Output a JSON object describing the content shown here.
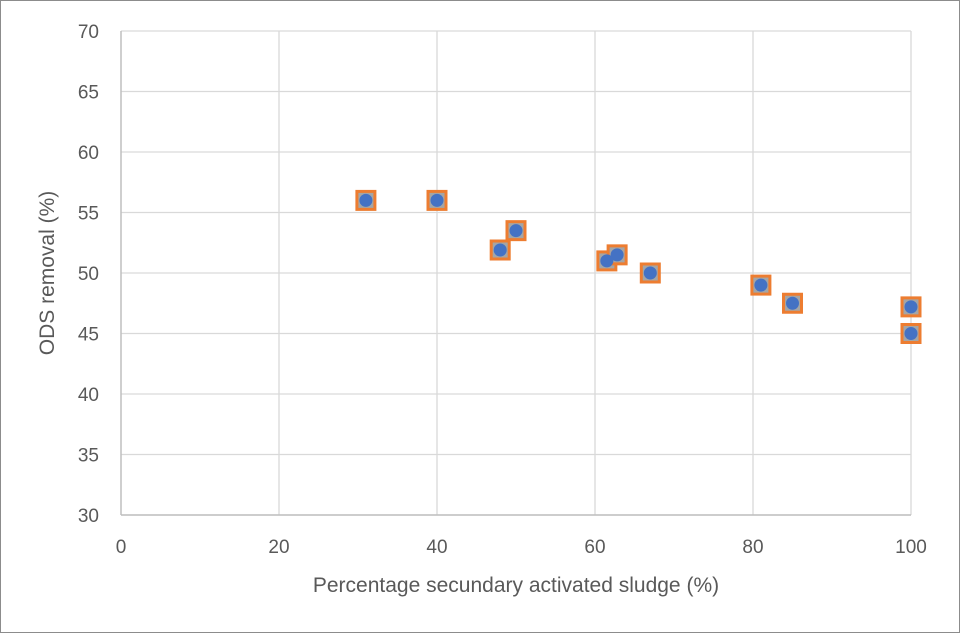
{
  "chart_data": {
    "type": "scatter",
    "xlabel": "Percentage secundary activated sludge  (%)",
    "ylabel": "ODS removal  (%)",
    "xlim": [
      0,
      100
    ],
    "ylim": [
      30,
      70
    ],
    "x_ticks": [
      "0",
      "20",
      "40",
      "60",
      "80",
      "100"
    ],
    "y_ticks": [
      "30",
      "35",
      "40",
      "45",
      "50",
      "55",
      "60",
      "65",
      "70"
    ],
    "grid": true,
    "legend": "none",
    "colors": {
      "circle_marker": "#4472C4",
      "square_marker_fill": "#A5A5A5",
      "square_marker_border": "#ED7D31",
      "gridline": "#d9d9d9",
      "axis_text": "#595959"
    },
    "series": [
      {
        "marker": "square",
        "x": [
          31,
          40,
          48,
          50,
          61.5,
          62.8,
          67,
          81,
          85,
          100,
          100
        ],
        "y": [
          56,
          56,
          51.9,
          53.5,
          51,
          51.5,
          50,
          49,
          47.5,
          47.2,
          45
        ]
      },
      {
        "marker": "circle",
        "x": [
          31,
          40,
          48,
          50,
          61.5,
          62.8,
          67,
          81,
          85,
          100,
          100
        ],
        "y": [
          56,
          56,
          51.9,
          53.5,
          51,
          51.5,
          50,
          49,
          47.5,
          47.2,
          45
        ]
      }
    ]
  }
}
